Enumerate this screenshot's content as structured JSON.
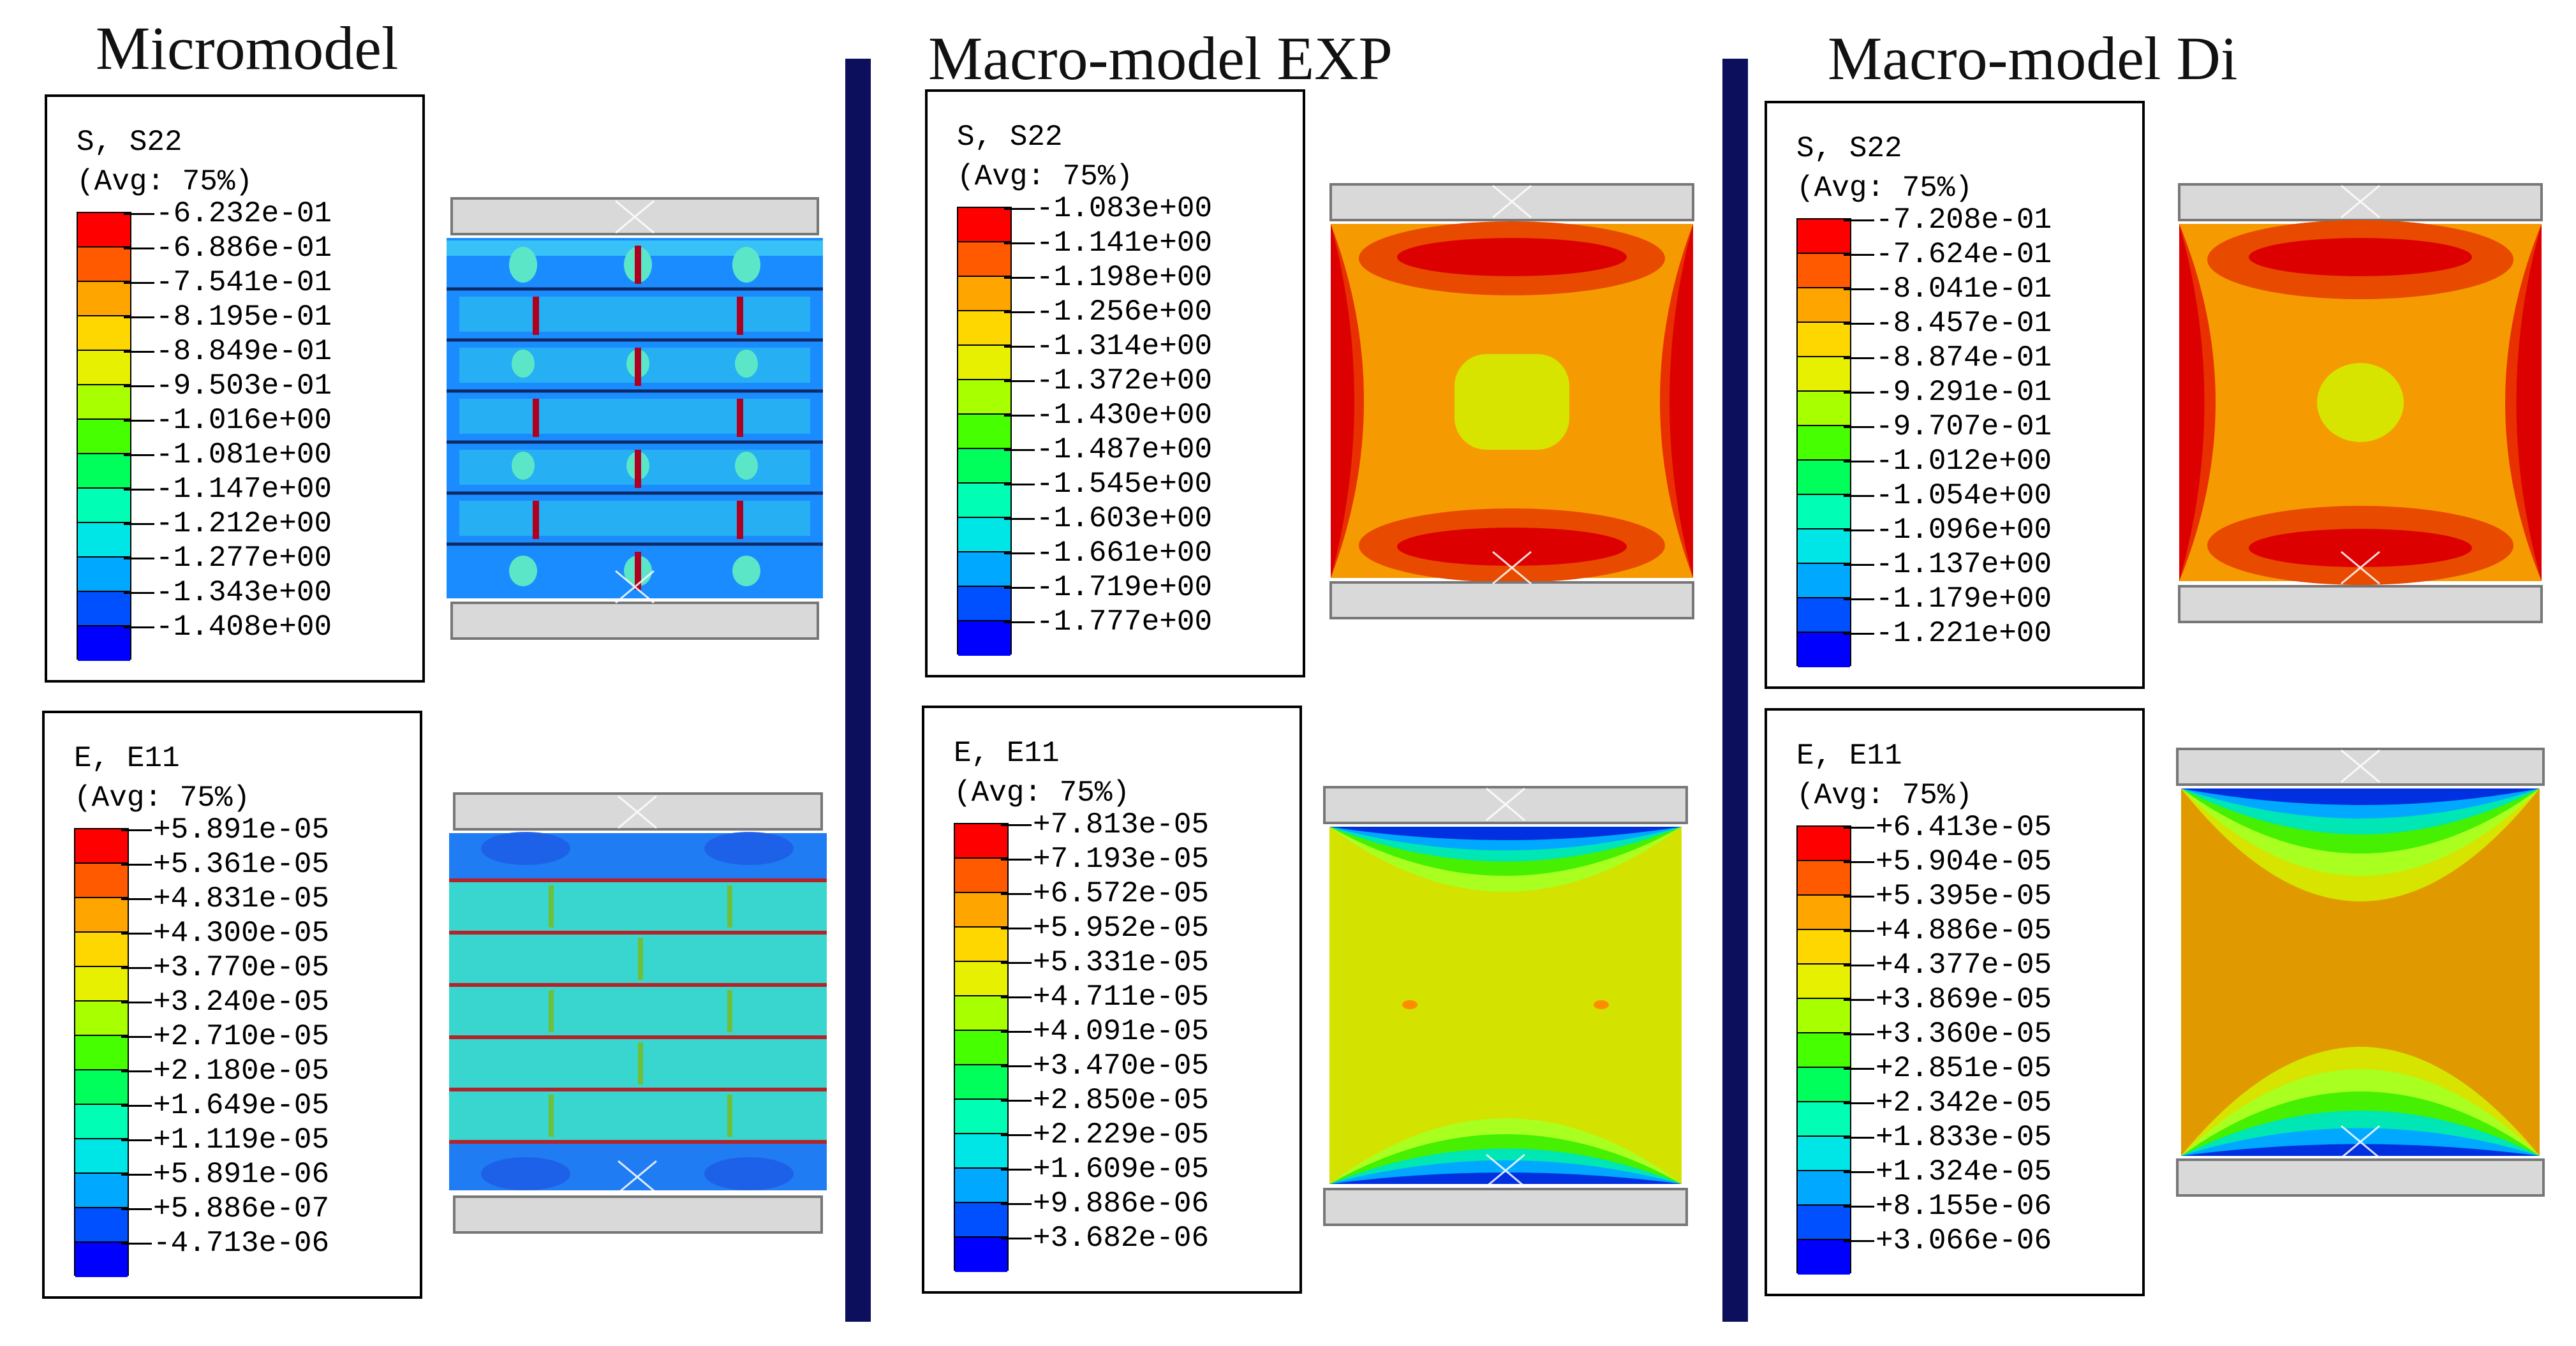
{
  "panels": [
    {
      "title": "Micromodel",
      "stress": {
        "var": "S, S22",
        "avg": "(Avg: 75%)",
        "values": [
          "-6.232e-01",
          "-6.886e-01",
          "-7.541e-01",
          "-8.195e-01",
          "-8.849e-01",
          "-9.503e-01",
          "-1.016e+00",
          "-1.081e+00",
          "-1.147e+00",
          "-1.212e+00",
          "-1.277e+00",
          "-1.343e+00",
          "-1.408e+00"
        ]
      },
      "strain": {
        "var": "E, E11",
        "avg": "(Avg: 75%)",
        "values": [
          "+5.891e-05",
          "+5.361e-05",
          "+4.831e-05",
          "+4.300e-05",
          "+3.770e-05",
          "+3.240e-05",
          "+2.710e-05",
          "+2.180e-05",
          "+1.649e-05",
          "+1.119e-05",
          "+5.891e-06",
          "+5.886e-07",
          "-4.713e-06"
        ]
      }
    },
    {
      "title": "Macro-model EXP",
      "stress": {
        "var": "S, S22",
        "avg": "(Avg: 75%)",
        "values": [
          "-1.083e+00",
          "-1.141e+00",
          "-1.198e+00",
          "-1.256e+00",
          "-1.314e+00",
          "-1.372e+00",
          "-1.430e+00",
          "-1.487e+00",
          "-1.545e+00",
          "-1.603e+00",
          "-1.661e+00",
          "-1.719e+00",
          "-1.777e+00"
        ]
      },
      "strain": {
        "var": "E, E11",
        "avg": "(Avg: 75%)",
        "values": [
          "+7.813e-05",
          "+7.193e-05",
          "+6.572e-05",
          "+5.952e-05",
          "+5.331e-05",
          "+4.711e-05",
          "+4.091e-05",
          "+3.470e-05",
          "+2.850e-05",
          "+2.229e-05",
          "+1.609e-05",
          "+9.886e-06",
          "+3.682e-06"
        ]
      }
    },
    {
      "title": "Macro-model Di",
      "stress": {
        "var": "S, S22",
        "avg": "(Avg: 75%)",
        "values": [
          "-7.208e-01",
          "-7.624e-01",
          "-8.041e-01",
          "-8.457e-01",
          "-8.874e-01",
          "-9.291e-01",
          "-9.707e-01",
          "-1.012e+00",
          "-1.054e+00",
          "-1.096e+00",
          "-1.137e+00",
          "-1.179e+00",
          "-1.221e+00"
        ]
      },
      "strain": {
        "var": "E, E11",
        "avg": "(Avg: 75%)",
        "values": [
          "+6.413e-05",
          "+5.904e-05",
          "+5.395e-05",
          "+4.886e-05",
          "+4.377e-05",
          "+3.869e-05",
          "+3.360e-05",
          "+2.851e-05",
          "+2.342e-05",
          "+1.833e-05",
          "+1.324e-05",
          "+8.155e-06",
          "+3.066e-06"
        ]
      }
    }
  ],
  "colormap": [
    "#ff0000",
    "#ff5a00",
    "#ffa500",
    "#ffd700",
    "#e6f000",
    "#a8ff00",
    "#46ff00",
    "#00ff5a",
    "#00ffb4",
    "#00e6e6",
    "#00a8ff",
    "#0050ff",
    "#0000ff"
  ],
  "colors": {
    "divider": "#0b0f5c",
    "plate": "#d9d9d9"
  }
}
